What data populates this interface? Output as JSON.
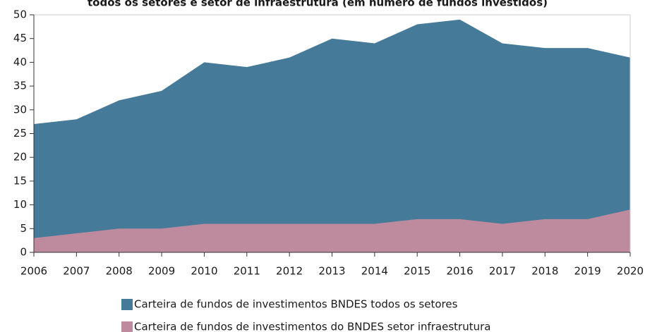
{
  "chart_data": {
    "type": "area",
    "title": "todos os setores e setor de infraestrutura (em número de fundos investidos)",
    "x": [
      2006,
      2007,
      2008,
      2009,
      2010,
      2011,
      2012,
      2013,
      2014,
      2015,
      2016,
      2017,
      2018,
      2019,
      2020
    ],
    "xlim": [
      2006,
      2020
    ],
    "xticks": [
      2006,
      2007,
      2008,
      2009,
      2010,
      2011,
      2012,
      2013,
      2014,
      2015,
      2016,
      2017,
      2018,
      2019,
      2020
    ],
    "ylim": [
      0,
      50
    ],
    "yticks": [
      0,
      5,
      10,
      15,
      20,
      25,
      30,
      35,
      40,
      45,
      50
    ],
    "series": [
      {
        "name": "Carteira de fundos de investimentos BNDES todos os setores",
        "color": "#457a99",
        "values": [
          27,
          28,
          32,
          34,
          40,
          39,
          41,
          45,
          44,
          48,
          49,
          44,
          43,
          43,
          41
        ]
      },
      {
        "name": "Carteira de fundos de investimentos do BNDES setor infraestrutura",
        "color": "#be8a9e",
        "values": [
          3,
          4,
          5,
          5,
          6,
          6,
          6,
          6,
          6,
          7,
          7,
          6,
          7,
          7,
          9
        ]
      }
    ]
  }
}
